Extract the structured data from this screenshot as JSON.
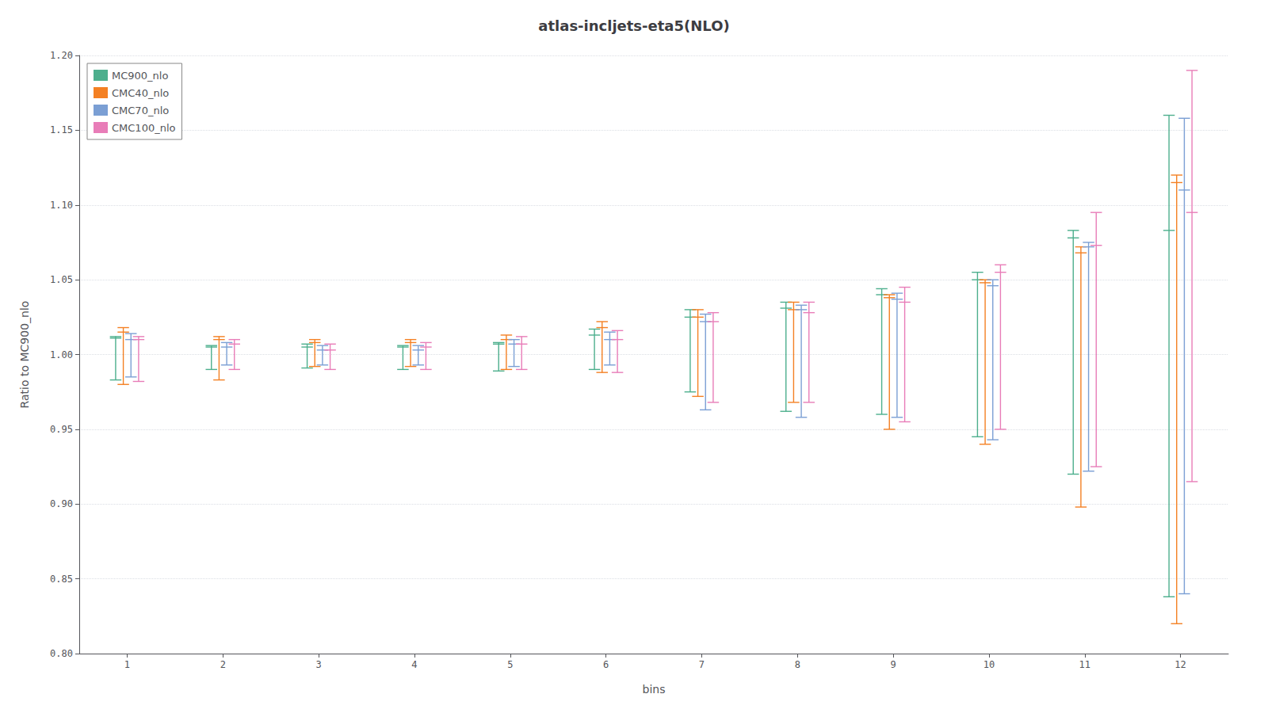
{
  "chart_data": {
    "type": "errorbar",
    "title": "atlas-incljets-eta5(NLO)",
    "xlabel": "bins",
    "ylabel": "Ratio to MC900_nlo",
    "x": [
      1,
      2,
      3,
      4,
      5,
      6,
      7,
      8,
      9,
      10,
      11,
      12
    ],
    "xlim": [
      0.5,
      12.5
    ],
    "xticks": [
      1,
      2,
      3,
      4,
      5,
      6,
      7,
      8,
      9,
      10,
      11,
      12
    ],
    "ylim": [
      0.8,
      1.2
    ],
    "yticks": [
      {
        "value": 0.8,
        "label": "0.80"
      },
      0.85,
      {
        "value": 0.9,
        "label": "0.90"
      },
      0.95,
      {
        "value": 1.0,
        "label": "1.00"
      },
      1.05,
      {
        "value": 1.1,
        "label": "1.10"
      },
      1.15,
      {
        "value": 1.2,
        "label": "1.20"
      }
    ],
    "grid": true,
    "legend": "upper left",
    "series": [
      {
        "name": "MC900_nlo",
        "color": "#4daf8d",
        "values": [
          1.011,
          1.005,
          1.005,
          1.005,
          1.007,
          1.013,
          1.025,
          1.031,
          1.04,
          1.05,
          1.078,
          1.083
        ],
        "lo": [
          0.983,
          0.99,
          0.991,
          0.99,
          0.989,
          0.99,
          0.975,
          0.962,
          0.96,
          0.945,
          0.92,
          0.838
        ],
        "hi": [
          1.012,
          1.006,
          1.007,
          1.006,
          1.008,
          1.017,
          1.03,
          1.035,
          1.044,
          1.055,
          1.083,
          1.16
        ]
      },
      {
        "name": "CMC40_nlo",
        "color": "#f48023",
        "values": [
          1.015,
          1.01,
          1.008,
          1.008,
          1.01,
          1.018,
          1.025,
          1.03,
          1.038,
          1.048,
          1.068,
          1.115
        ],
        "lo": [
          0.98,
          0.983,
          0.992,
          0.992,
          0.99,
          0.988,
          0.972,
          0.968,
          0.95,
          0.94,
          0.898,
          0.82
        ],
        "hi": [
          1.018,
          1.012,
          1.01,
          1.01,
          1.013,
          1.022,
          1.03,
          1.035,
          1.04,
          1.05,
          1.072,
          1.12
        ]
      },
      {
        "name": "CMC70_nlo",
        "color": "#7b9fd4",
        "values": [
          1.01,
          1.005,
          1.003,
          1.003,
          1.007,
          1.01,
          1.022,
          1.03,
          1.037,
          1.046,
          1.072,
          1.11
        ],
        "lo": [
          0.985,
          0.993,
          0.993,
          0.993,
          0.992,
          0.993,
          0.963,
          0.958,
          0.958,
          0.943,
          0.922,
          0.84
        ],
        "hi": [
          1.014,
          1.008,
          1.006,
          1.006,
          1.01,
          1.015,
          1.027,
          1.033,
          1.041,
          1.05,
          1.075,
          1.158
        ]
      },
      {
        "name": "CMC100_nlo",
        "color": "#e87db8",
        "values": [
          1.01,
          1.007,
          1.003,
          1.005,
          1.007,
          1.01,
          1.022,
          1.028,
          1.035,
          1.055,
          1.073,
          1.095
        ],
        "lo": [
          0.982,
          0.99,
          0.99,
          0.99,
          0.99,
          0.988,
          0.968,
          0.968,
          0.955,
          0.95,
          0.925,
          0.915
        ],
        "hi": [
          1.012,
          1.01,
          1.007,
          1.008,
          1.012,
          1.016,
          1.028,
          1.035,
          1.045,
          1.06,
          1.095,
          1.19
        ]
      }
    ]
  }
}
